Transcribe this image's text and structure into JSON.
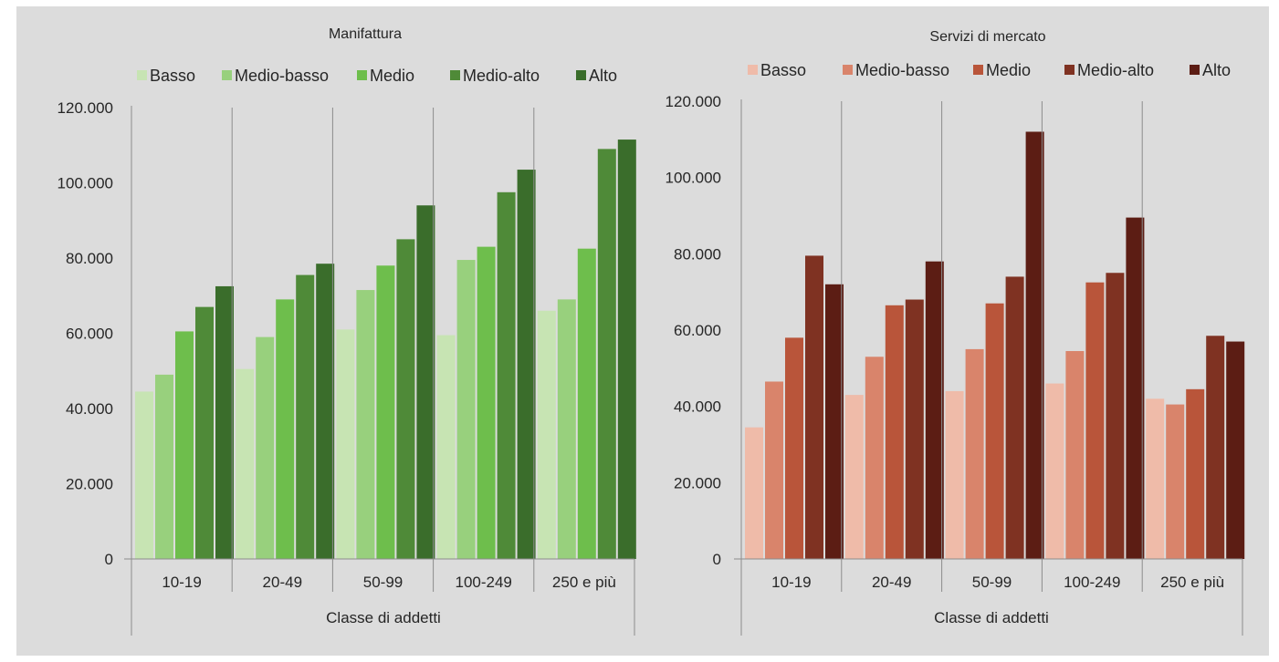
{
  "chart_data": [
    {
      "type": "bar",
      "title": "Manifattura",
      "xlabel": "Classe di addetti",
      "ylabel": "",
      "ylim": [
        0,
        120000
      ],
      "yticks": [
        "0",
        "20.000",
        "40.000",
        "60.000",
        "80.000",
        "100.000",
        "120.000"
      ],
      "grid": false,
      "legend_position": "top",
      "categories": [
        "10-19",
        "20-49",
        "50-99",
        "100-249",
        "250 e più"
      ],
      "series": [
        {
          "name": "Basso",
          "color": "#c7e4b3",
          "values": [
            44500,
            50500,
            61000,
            59500,
            66000
          ]
        },
        {
          "name": "Medio-basso",
          "color": "#98d07d",
          "values": [
            49000,
            59000,
            71500,
            79500,
            69000
          ]
        },
        {
          "name": "Medio",
          "color": "#6ebe4c",
          "values": [
            60500,
            69000,
            78000,
            83000,
            82500
          ]
        },
        {
          "name": "Medio-alto",
          "color": "#4f8a38",
          "values": [
            67000,
            75500,
            85000,
            97500,
            109000
          ]
        },
        {
          "name": "Alto",
          "color": "#3a6d2b",
          "values": [
            72500,
            78500,
            94000,
            103500,
            111500
          ]
        }
      ]
    },
    {
      "type": "bar",
      "title": "Servizi di mercato",
      "xlabel": "Classe di addetti",
      "ylabel": "",
      "ylim": [
        0,
        120000
      ],
      "yticks": [
        "0",
        "20.000",
        "40.000",
        "60.000",
        "80.000",
        "100.000",
        "120.000"
      ],
      "grid": false,
      "legend_position": "top",
      "categories": [
        "10-19",
        "20-49",
        "50-99",
        "100-249",
        "250 e più"
      ],
      "series": [
        {
          "name": "Basso",
          "color": "#efbba9",
          "values": [
            34500,
            43000,
            44000,
            46000,
            42000
          ]
        },
        {
          "name": "Medio-basso",
          "color": "#d9846b",
          "values": [
            46500,
            53000,
            55000,
            54500,
            40500
          ]
        },
        {
          "name": "Medio",
          "color": "#b9553a",
          "values": [
            58000,
            66500,
            67000,
            72500,
            44500
          ]
        },
        {
          "name": "Medio-alto",
          "color": "#7f3222",
          "values": [
            79500,
            68000,
            74000,
            75000,
            58500
          ]
        },
        {
          "name": "Alto",
          "color": "#5c1d14",
          "values": [
            72000,
            78000,
            112000,
            89500,
            57000
          ]
        }
      ]
    }
  ]
}
